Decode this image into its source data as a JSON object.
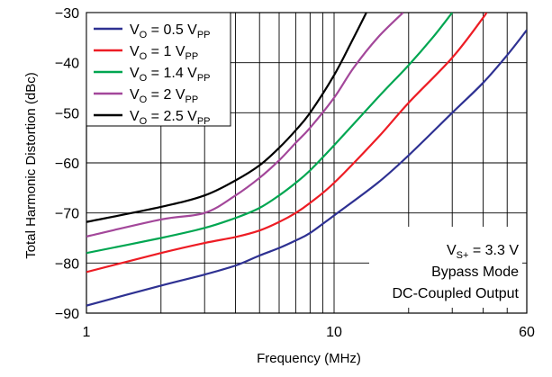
{
  "chart_data": {
    "type": "line",
    "xlabel": "Frequency (MHz)",
    "ylabel": "Total Harmonic Distortion (dBc)",
    "xscale": "log",
    "xlim": [
      1,
      60
    ],
    "ylim": [
      -90,
      -30
    ],
    "x_ticks": [
      1,
      10,
      60
    ],
    "x_tick_labels": [
      "1",
      "10",
      "60"
    ],
    "y_ticks": [
      -30,
      -40,
      -50,
      -60,
      -70,
      -80,
      -90
    ],
    "y_tick_labels": [
      "−30",
      "−40",
      "−50",
      "−60",
      "−70",
      "−80",
      "−90"
    ],
    "grid": true,
    "legend_position": "top-left",
    "series": [
      {
        "name": "V_O = 0.5 V_PP",
        "label_main": "V",
        "label_sub1": "O",
        "label_mid": " = 0.5 V",
        "label_sub2": "PP",
        "color": "#2e3192",
        "points": [
          [
            1,
            -88.5
          ],
          [
            2,
            -84.5
          ],
          [
            3,
            -82.3
          ],
          [
            4,
            -80.5
          ],
          [
            5,
            -78.5
          ],
          [
            6,
            -77
          ],
          [
            7,
            -75.5
          ],
          [
            8,
            -74
          ],
          [
            10,
            -70.5
          ],
          [
            15,
            -64
          ],
          [
            20,
            -58.5
          ],
          [
            30,
            -50
          ],
          [
            40,
            -44
          ],
          [
            50,
            -38.5
          ],
          [
            60,
            -33.5
          ]
        ]
      },
      {
        "name": "V_O = 1 V_PP",
        "label_main": "V",
        "label_sub1": "O",
        "label_mid": " = 1 V",
        "label_sub2": "PP",
        "color": "#ed1c24",
        "points": [
          [
            1,
            -81.8
          ],
          [
            2,
            -78
          ],
          [
            3,
            -76
          ],
          [
            4,
            -74.8
          ],
          [
            5,
            -73.5
          ],
          [
            6,
            -71.8
          ],
          [
            7,
            -70
          ],
          [
            8,
            -68
          ],
          [
            10,
            -64
          ],
          [
            15,
            -55
          ],
          [
            20,
            -48
          ],
          [
            30,
            -39
          ],
          [
            40,
            -31
          ],
          [
            41,
            -30
          ]
        ]
      },
      {
        "name": "V_O = 1.4 V_PP",
        "label_main": "V",
        "label_sub1": "O",
        "label_mid": " = 1.4 V",
        "label_sub2": "PP",
        "color": "#00a651",
        "points": [
          [
            1,
            -78
          ],
          [
            2,
            -75
          ],
          [
            3,
            -73
          ],
          [
            4,
            -71
          ],
          [
            5,
            -69
          ],
          [
            6,
            -66.5
          ],
          [
            7,
            -64
          ],
          [
            8,
            -61.5
          ],
          [
            10,
            -56.5
          ],
          [
            15,
            -47
          ],
          [
            20,
            -40.5
          ],
          [
            25,
            -35
          ],
          [
            30,
            -30
          ]
        ]
      },
      {
        "name": "V_O = 2 V_PP",
        "label_main": "V",
        "label_sub1": "O",
        "label_mid": " = 2 V",
        "label_sub2": "PP",
        "color": "#a3479a",
        "points": [
          [
            1,
            -74.7
          ],
          [
            2,
            -71.3
          ],
          [
            3,
            -70
          ],
          [
            4,
            -66.5
          ],
          [
            5,
            -63
          ],
          [
            6,
            -59.5
          ],
          [
            7,
            -56
          ],
          [
            8,
            -53
          ],
          [
            10,
            -47
          ],
          [
            12,
            -41
          ],
          [
            15,
            -35
          ],
          [
            19,
            -30
          ]
        ]
      },
      {
        "name": "V_O = 2.5 V_PP",
        "label_main": "V",
        "label_sub1": "O",
        "label_mid": " = 2.5 V",
        "label_sub2": "PP",
        "color": "#000000",
        "points": [
          [
            1,
            -71.8
          ],
          [
            2,
            -68.8
          ],
          [
            3,
            -66.5
          ],
          [
            4,
            -63.5
          ],
          [
            5,
            -60.5
          ],
          [
            6,
            -57
          ],
          [
            7,
            -53.5
          ],
          [
            8,
            -50
          ],
          [
            10,
            -42.5
          ],
          [
            12,
            -35
          ],
          [
            13.5,
            -30
          ]
        ]
      }
    ],
    "annotation": {
      "line1_main": "V",
      "line1_sub": "S+",
      "line1_rest": " = 3.3 V",
      "line2": "Bypass Mode",
      "line3": "DC-Coupled Output"
    }
  }
}
